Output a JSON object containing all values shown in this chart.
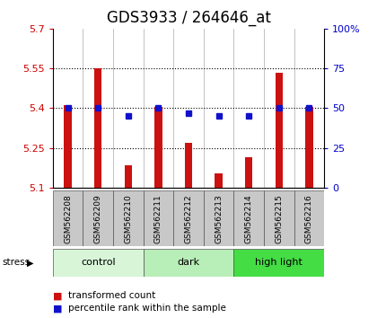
{
  "title": "GDS3933 / 264646_at",
  "samples": [
    "GSM562208",
    "GSM562209",
    "GSM562210",
    "GSM562211",
    "GSM562212",
    "GSM562213",
    "GSM562214",
    "GSM562215",
    "GSM562216"
  ],
  "transformed_counts": [
    5.41,
    5.55,
    5.185,
    5.405,
    5.27,
    5.155,
    5.215,
    5.535,
    5.405
  ],
  "percentile_ranks": [
    50,
    50,
    45,
    50,
    47,
    45,
    45,
    50,
    50
  ],
  "ylim_left": [
    5.1,
    5.7
  ],
  "ylim_right": [
    0,
    100
  ],
  "yticks_left": [
    5.1,
    5.25,
    5.4,
    5.55,
    5.7
  ],
  "yticks_right": [
    0,
    25,
    50,
    75,
    100
  ],
  "ytick_labels_left": [
    "5.1",
    "5.25",
    "5.4",
    "5.55",
    "5.7"
  ],
  "ytick_labels_right": [
    "0",
    "25",
    "50",
    "75",
    "100%"
  ],
  "grid_values": [
    5.25,
    5.4,
    5.55
  ],
  "bar_color": "#cc1111",
  "dot_color": "#1111cc",
  "bar_width": 0.25,
  "bar_bottom": 5.1,
  "groups": [
    {
      "label": "control",
      "indices": [
        0,
        1,
        2
      ],
      "color": "#d8f5d8"
    },
    {
      "label": "dark",
      "indices": [
        3,
        4,
        5
      ],
      "color": "#b8eeb8"
    },
    {
      "label": "high light",
      "indices": [
        6,
        7,
        8
      ],
      "color": "#44dd44"
    }
  ],
  "stress_label": "stress",
  "legend_items": [
    {
      "color": "#cc1111",
      "label": "transformed count"
    },
    {
      "color": "#1111cc",
      "label": "percentile rank within the sample"
    }
  ],
  "plot_bg": "#ffffff",
  "sample_area_bg": "#c8c8c8",
  "left_tick_color": "#cc0000",
  "right_tick_color": "#0000cc",
  "title_fontsize": 12,
  "tick_fontsize": 8,
  "legend_fontsize": 7.5
}
